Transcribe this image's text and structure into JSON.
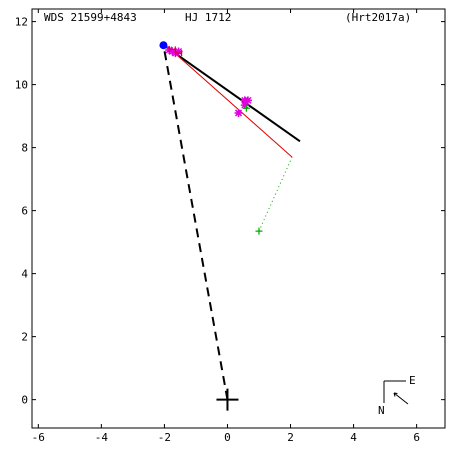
{
  "header": {
    "left": "WDS 21599+4843",
    "center": "HJ 1712",
    "right": "(Hrt2017a)"
  },
  "chart_data": {
    "type": "scatter",
    "xlim": [
      -6.2,
      6.9
    ],
    "ylim": [
      -0.9,
      12.4
    ],
    "x_ticks": [
      -6,
      -4,
      -2,
      0,
      2,
      4,
      6
    ],
    "y_ticks": [
      0,
      2,
      4,
      6,
      8,
      10,
      12
    ],
    "x_tick_labels": [
      "-6",
      "-4",
      "-2",
      "0",
      "2",
      "4",
      "6"
    ],
    "y_tick_labels": [
      "0",
      "2",
      "4",
      "6",
      "8",
      "10",
      "12"
    ],
    "primary_star": {
      "x": 0.0,
      "y": 0.0
    },
    "dashed_line_to": {
      "x": -2.03,
      "y": 11.25
    },
    "orbit_black_line": [
      [
        -1.95,
        11.2
      ],
      [
        2.3,
        8.2
      ]
    ],
    "orbit_red_line": [
      [
        -1.9,
        11.2
      ],
      [
        2.05,
        7.7
      ]
    ],
    "green_dotted_line": [
      [
        2.05,
        7.7
      ],
      [
        1.0,
        5.35
      ]
    ],
    "blue_point": {
      "x": -2.03,
      "y": 11.25
    },
    "green_points": [
      {
        "x": 0.6,
        "y": 9.25
      },
      {
        "x": 1.0,
        "y": 5.35
      }
    ],
    "magenta_stars": [
      {
        "x": 0.55,
        "y": 9.5
      },
      {
        "x": 0.65,
        "y": 9.5
      },
      {
        "x": 0.35,
        "y": 9.1
      },
      {
        "x": 0.55,
        "y": 9.35
      }
    ],
    "magenta_cluster": [
      {
        "x": -1.85,
        "y": 11.1
      },
      {
        "x": -1.75,
        "y": 11.05
      },
      {
        "x": -1.65,
        "y": 11.0
      },
      {
        "x": -1.55,
        "y": 11.05
      }
    ],
    "red_marks": [
      {
        "x": -1.75,
        "y": 11.12
      },
      {
        "x": -1.55,
        "y": 11.0
      }
    ],
    "compass": {
      "east": "E",
      "north": "N"
    },
    "colors": {
      "axis": "#000000",
      "orbit": "#000000",
      "red_line": "#e00000",
      "green": "#00aa00",
      "magenta": "#e000e0",
      "blue": "#0000ff"
    }
  }
}
